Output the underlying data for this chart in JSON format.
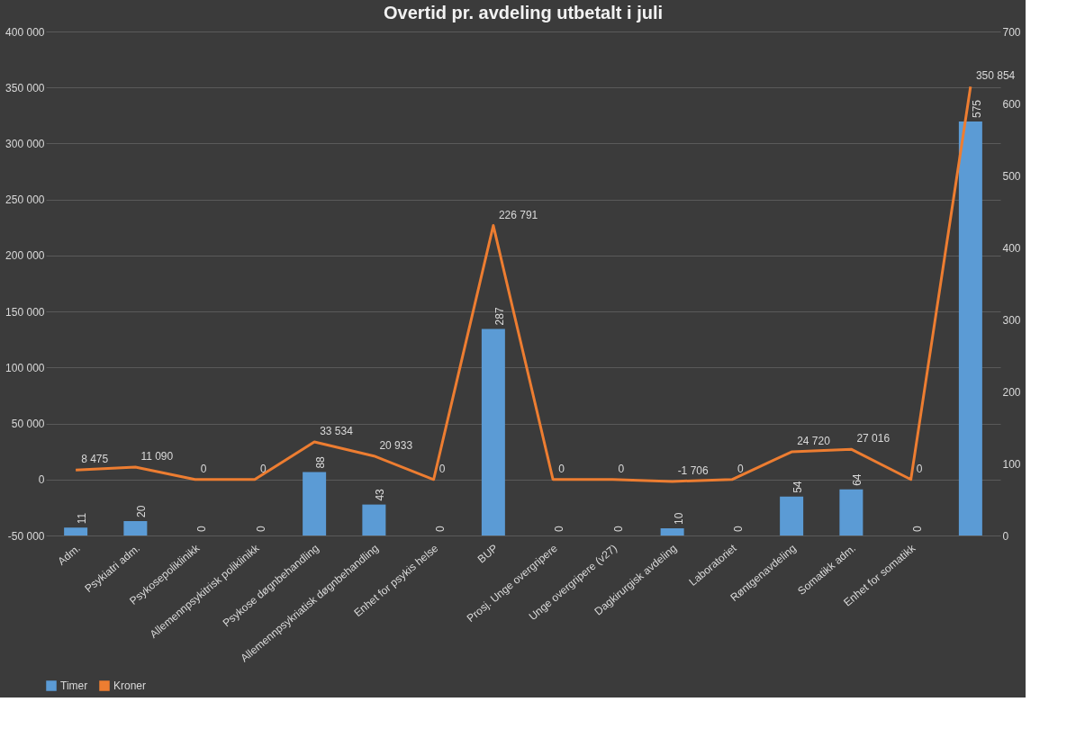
{
  "chart_data": {
    "type": "bar",
    "title": "Overtid pr. avdeling utbetalt i juli",
    "categories": [
      "Adm.",
      "Psykiatri adm.",
      "Psykosepoliklinikk",
      "Allemennpsykitrisk poliklinikk",
      "Psykose døgnbehandling",
      "Allemennpsykriatisk døgnbehandling",
      "Enhet for psykis helse",
      "BUP",
      "Prosj. Unge overgripere",
      "Unge overgripere (v27)",
      "Dagkirurgisk avdeling",
      "Laboratoriet",
      "Røntgenavdeling",
      "Somatikk adm.",
      "Enhet for somatikk",
      null
    ],
    "series": [
      {
        "name": "Timer",
        "axis": "y2",
        "color": "#5b9bd5",
        "values": [
          11,
          20,
          0,
          0,
          88,
          43,
          0,
          287,
          0,
          0,
          10,
          0,
          54,
          64,
          0,
          575
        ],
        "value_labels": [
          "11",
          "20",
          "0",
          "0",
          "88",
          "43",
          "0",
          "287",
          "0",
          "0",
          "10",
          "0",
          "54",
          "64",
          "0",
          "575"
        ]
      },
      {
        "name": "Kroner",
        "type": "line",
        "color": "#ed7d31",
        "values": [
          8475,
          11090,
          0,
          0,
          33534,
          20933,
          0,
          226791,
          0,
          0,
          -1706,
          0,
          24720,
          27016,
          0,
          350854
        ],
        "value_labels": [
          "8 475",
          "11 090",
          "0",
          "0",
          "33 534",
          "20 933",
          "0",
          "226 791",
          "0",
          "0",
          "-1 706",
          "0",
          "24 720",
          "27 016",
          "0",
          "350 854"
        ]
      }
    ],
    "ylim": [
      -50000,
      400000
    ],
    "yticks": [
      {
        "value": -50000,
        "label": "-50 000"
      },
      0,
      {
        "value": 50000,
        "label": "50 000"
      },
      {
        "value": 100000,
        "label": "100 000"
      },
      {
        "value": 150000,
        "label": "150 000"
      },
      {
        "value": 200000,
        "label": "200 000"
      },
      {
        "value": 250000,
        "label": "250 000"
      },
      {
        "value": 300000,
        "label": "300 000"
      },
      {
        "value": 350000,
        "label": "350 000"
      },
      {
        "value": 400000,
        "label": "400 000"
      }
    ],
    "y2lim": [
      0,
      700
    ],
    "y2ticks": [
      0,
      100,
      200,
      300,
      400,
      500,
      600,
      700
    ],
    "grid": "y",
    "legend": "bottom",
    "line_style": "solid",
    "marker": "none"
  }
}
